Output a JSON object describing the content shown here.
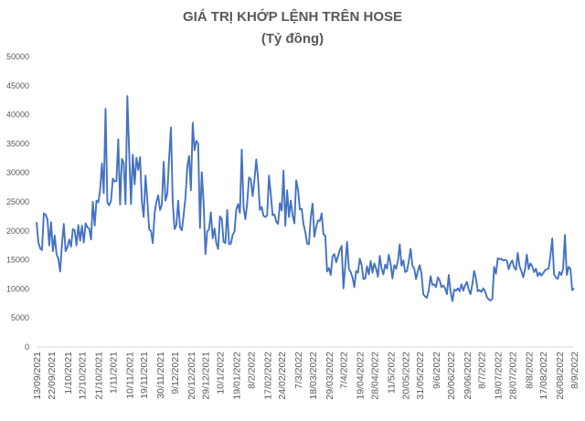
{
  "chart_data": {
    "type": "line",
    "title": "GIÁ TRỊ KHỚP LỆNH TRÊN HOSE",
    "subtitle": "(Tỷ đồng)",
    "xlabel": "",
    "ylabel": "",
    "ylim": [
      0,
      50000
    ],
    "y_ticks": [
      0,
      5000,
      10000,
      15000,
      20000,
      25000,
      30000,
      35000,
      40000,
      45000,
      50000
    ],
    "x_tick_labels": [
      "13/09/2021",
      "22/09/2021",
      "1/10/2021",
      "12/10/2021",
      "21/10/2021",
      "1/11/2021",
      "10/11/2021",
      "19/11/2021",
      "30/11/2021",
      "9/12/2021",
      "20/12/2021",
      "29/12/2021",
      "10/1/2022",
      "19/01/2022",
      "8/2/2022",
      "17/02/2022",
      "24/02/2022",
      "7/3/2022",
      "18/03/2022",
      "29/03/2022",
      "7/4/2022",
      "19/04/2022",
      "28/04/2022",
      "11/5/2022",
      "20/05/2022",
      "31/05/2022",
      "9/6/2022",
      "20/06/2022",
      "29/06/2022",
      "8/7/2022",
      "19/07/2022",
      "28/07/2022",
      "8/8/2022",
      "17/08/2022",
      "26/08/2022",
      "8/9/2022"
    ],
    "grid": false,
    "legend": "none",
    "line_color": "#4472C4",
    "series": [
      {
        "values": [
          21500,
          18000,
          17000,
          16700,
          23000,
          22800,
          22000,
          17500,
          21500,
          16500,
          19200,
          16000,
          15200,
          13000,
          17800,
          21200,
          16500,
          17200,
          18500,
          17300,
          20300,
          20100,
          17500,
          21000,
          18300,
          20900,
          18000,
          21300,
          20600,
          20400,
          18500,
          25000,
          20900,
          25200,
          24900,
          27000,
          31600,
          26500,
          41000,
          24900,
          24400,
          25200,
          29000,
          28500,
          28600,
          35800,
          24500,
          32400,
          31700,
          24600,
          43200,
          33600,
          24600,
          33100,
          28000,
          32600,
          30500,
          32700,
          25000,
          22400,
          29500,
          25300,
          20300,
          20000,
          17900,
          23000,
          25000,
          26100,
          23600,
          24500,
          31900,
          25200,
          26400,
          32500,
          37800,
          24900,
          20300,
          21000,
          25200,
          20600,
          20100,
          22700,
          25800,
          31000,
          32900,
          27000,
          38600,
          33900,
          35500,
          35000,
          20500,
          30100,
          24900,
          16000,
          19900,
          20300,
          23200,
          18700,
          20400,
          17900,
          16900,
          22500,
          22100,
          18100,
          17900,
          23600,
          17700,
          17800,
          19300,
          19900,
          23700,
          24600,
          23100,
          34000,
          24100,
          22000,
          24800,
          29200,
          28900,
          26000,
          28800,
          32300,
          29000,
          23600,
          24100,
          22600,
          22400,
          22700,
          29500,
          26300,
          22700,
          22800,
          21600,
          21200,
          24800,
          23500,
          30400,
          20900,
          27000,
          22400,
          25200,
          22700,
          21300,
          28700,
          27100,
          23700,
          23800,
          21200,
          19800,
          17800,
          17700,
          22300,
          24700,
          19000,
          20700,
          21800,
          21700,
          23000,
          19400,
          19200,
          13000,
          13600,
          12400,
          15600,
          16000,
          14600,
          15600,
          16700,
          17400,
          10100,
          14000,
          18100,
          13500,
          12900,
          12000,
          10300,
          13100,
          12800,
          15200,
          14200,
          11700,
          11800,
          13900,
          12500,
          14800,
          12800,
          14400,
          13500,
          12100,
          15700,
          13500,
          12500,
          14200,
          13500,
          15900,
          14300,
          11800,
          14100,
          13500,
          14800,
          17700,
          14000,
          14900,
          12900,
          13100,
          14800,
          16900,
          14000,
          13500,
          11700,
          13100,
          14100,
          12600,
          9100,
          8700,
          8500,
          9800,
          12200,
          10700,
          10800,
          10300,
          12000,
          11500,
          10300,
          10600,
          10100,
          9100,
          12400,
          9600,
          7900,
          9900,
          9700,
          10100,
          9600,
          10800,
          9700,
          10600,
          11200,
          9900,
          9100,
          10800,
          13100,
          11800,
          9600,
          9800,
          9500,
          10100,
          9600,
          8600,
          8200,
          8000,
          8300,
          13800,
          12600,
          15300,
          15100,
          15200,
          14900,
          15000,
          14900,
          13400,
          14400,
          14900,
          13700,
          13300,
          16200,
          13900,
          13100,
          12000,
          13300,
          15900,
          13400,
          14400,
          13900,
          12900,
          13500,
          12200,
          12800,
          12300,
          12700,
          13200,
          13400,
          13500,
          15700,
          18700,
          12500,
          12000,
          11700,
          12900,
          12400,
          13500,
          19300,
          12400,
          13800,
          13500,
          9800,
          10100
        ]
      }
    ]
  }
}
